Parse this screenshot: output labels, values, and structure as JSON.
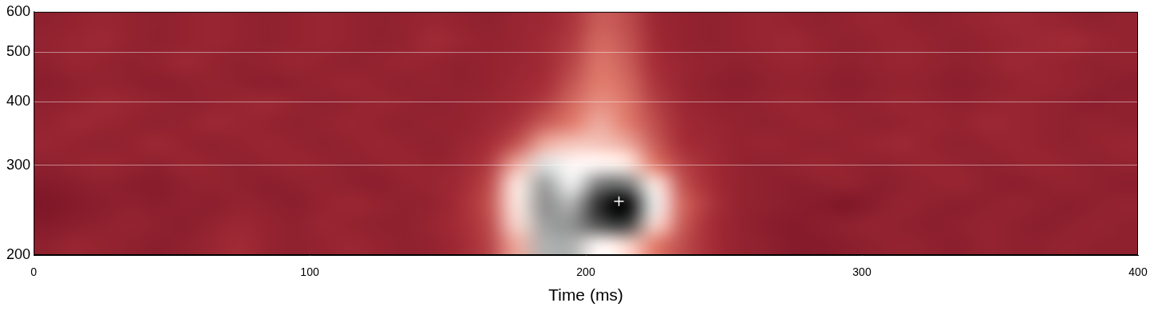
{
  "chart_data": {
    "type": "heatmap",
    "x_label": "Time (ms)",
    "xlim": [
      0,
      400
    ],
    "xticks": [
      0,
      100,
      200,
      300,
      400
    ],
    "ylim": [
      200,
      600
    ],
    "yticks": [
      200,
      300,
      400,
      500,
      600
    ],
    "log": "y",
    "grid": true,
    "x_edges": [
      0,
      10,
      20,
      30,
      40,
      50,
      60,
      70,
      80,
      90,
      100,
      110,
      120,
      130,
      140,
      150,
      160,
      170,
      180,
      190,
      200,
      210,
      220,
      230,
      240,
      250,
      260,
      270,
      280,
      290,
      300,
      310,
      320,
      330,
      340,
      350,
      360,
      370,
      380,
      390,
      400
    ],
    "y_edges": [
      200,
      219.2,
      240.2,
      263.2,
      288.4,
      316.1,
      346.4,
      379.6,
      416.0,
      455.9,
      499.6,
      547.5,
      600
    ],
    "cells": [
      [
        0.2,
        0.24,
        0.22,
        0.2,
        0.18,
        0.2,
        0.24,
        0.28,
        0.22,
        0.2,
        0.22,
        0.25,
        0.22,
        0.2,
        0.22,
        0.28,
        0.36,
        0.55,
        0.78,
        0.78,
        0.66,
        0.6,
        0.5,
        0.38,
        0.3,
        0.22,
        0.2,
        0.15,
        0.15,
        0.18,
        0.2,
        0.22,
        0.2,
        0.18,
        0.22,
        0.2,
        0.2,
        0.22,
        0.2,
        0.2
      ],
      [
        0.15,
        0.18,
        0.2,
        0.22,
        0.2,
        0.18,
        0.22,
        0.25,
        0.22,
        0.2,
        0.24,
        0.22,
        0.2,
        0.2,
        0.24,
        0.3,
        0.38,
        0.6,
        0.8,
        0.82,
        0.9,
        0.92,
        0.6,
        0.42,
        0.3,
        0.22,
        0.18,
        0.15,
        0.18,
        0.2,
        0.22,
        0.2,
        0.18,
        0.2,
        0.22,
        0.2,
        0.18,
        0.2,
        0.22,
        0.2
      ],
      [
        0.12,
        0.15,
        0.18,
        0.2,
        0.18,
        0.2,
        0.18,
        0.22,
        0.2,
        0.18,
        0.22,
        0.25,
        0.22,
        0.2,
        0.22,
        0.3,
        0.4,
        0.62,
        0.82,
        0.78,
        0.95,
        1.0,
        0.7,
        0.45,
        0.32,
        0.22,
        0.2,
        0.18,
        0.15,
        0.12,
        0.18,
        0.22,
        0.2,
        0.18,
        0.2,
        0.22,
        0.2,
        0.18,
        0.2,
        0.22
      ],
      [
        0.15,
        0.18,
        0.2,
        0.18,
        0.16,
        0.2,
        0.22,
        0.2,
        0.18,
        0.2,
        0.22,
        0.2,
        0.18,
        0.22,
        0.24,
        0.28,
        0.38,
        0.62,
        0.8,
        0.7,
        0.85,
        0.85,
        0.62,
        0.4,
        0.3,
        0.22,
        0.2,
        0.18,
        0.2,
        0.22,
        0.18,
        0.2,
        0.22,
        0.24,
        0.2,
        0.18,
        0.2,
        0.22,
        0.2,
        0.18
      ],
      [
        0.2,
        0.22,
        0.24,
        0.22,
        0.2,
        0.24,
        0.22,
        0.2,
        0.22,
        0.24,
        0.22,
        0.2,
        0.22,
        0.24,
        0.22,
        0.26,
        0.34,
        0.55,
        0.72,
        0.66,
        0.66,
        0.62,
        0.5,
        0.35,
        0.28,
        0.22,
        0.2,
        0.22,
        0.24,
        0.22,
        0.2,
        0.22,
        0.24,
        0.22,
        0.2,
        0.22,
        0.24,
        0.22,
        0.2,
        0.22
      ],
      [
        0.24,
        0.22,
        0.2,
        0.22,
        0.26,
        0.22,
        0.2,
        0.22,
        0.24,
        0.22,
        0.2,
        0.22,
        0.24,
        0.22,
        0.2,
        0.24,
        0.3,
        0.4,
        0.55,
        0.58,
        0.58,
        0.55,
        0.42,
        0.3,
        0.26,
        0.22,
        0.24,
        0.22,
        0.2,
        0.22,
        0.24,
        0.26,
        0.22,
        0.2,
        0.22,
        0.24,
        0.22,
        0.2,
        0.22,
        0.24
      ],
      [
        0.22,
        0.26,
        0.24,
        0.22,
        0.2,
        0.22,
        0.26,
        0.24,
        0.22,
        0.2,
        0.22,
        0.24,
        0.22,
        0.2,
        0.22,
        0.22,
        0.26,
        0.32,
        0.42,
        0.5,
        0.55,
        0.5,
        0.38,
        0.28,
        0.24,
        0.22,
        0.2,
        0.22,
        0.24,
        0.22,
        0.2,
        0.22,
        0.24,
        0.22,
        0.26,
        0.24,
        0.22,
        0.2,
        0.22,
        0.2
      ],
      [
        0.2,
        0.22,
        0.26,
        0.24,
        0.22,
        0.2,
        0.22,
        0.24,
        0.26,
        0.22,
        0.2,
        0.22,
        0.24,
        0.22,
        0.2,
        0.22,
        0.24,
        0.28,
        0.34,
        0.45,
        0.52,
        0.48,
        0.35,
        0.26,
        0.22,
        0.2,
        0.22,
        0.24,
        0.22,
        0.2,
        0.22,
        0.24,
        0.22,
        0.2,
        0.22,
        0.24,
        0.22,
        0.2,
        0.18,
        0.2
      ],
      [
        0.18,
        0.2,
        0.22,
        0.2,
        0.18,
        0.2,
        0.22,
        0.2,
        0.18,
        0.2,
        0.22,
        0.24,
        0.22,
        0.2,
        0.22,
        0.2,
        0.22,
        0.26,
        0.3,
        0.4,
        0.5,
        0.45,
        0.32,
        0.24,
        0.2,
        0.18,
        0.2,
        0.22,
        0.2,
        0.18,
        0.2,
        0.22,
        0.2,
        0.18,
        0.2,
        0.22,
        0.24,
        0.22,
        0.2,
        0.18
      ],
      [
        0.2,
        0.24,
        0.22,
        0.2,
        0.22,
        0.26,
        0.22,
        0.2,
        0.22,
        0.24,
        0.22,
        0.2,
        0.22,
        0.24,
        0.22,
        0.2,
        0.22,
        0.24,
        0.28,
        0.36,
        0.48,
        0.42,
        0.3,
        0.24,
        0.22,
        0.2,
        0.22,
        0.24,
        0.22,
        0.2,
        0.22,
        0.24,
        0.22,
        0.2,
        0.22,
        0.26,
        0.24,
        0.22,
        0.2,
        0.22
      ],
      [
        0.22,
        0.24,
        0.26,
        0.22,
        0.2,
        0.22,
        0.24,
        0.22,
        0.2,
        0.22,
        0.24,
        0.22,
        0.2,
        0.22,
        0.28,
        0.24,
        0.22,
        0.24,
        0.28,
        0.34,
        0.45,
        0.4,
        0.28,
        0.22,
        0.2,
        0.22,
        0.24,
        0.26,
        0.22,
        0.2,
        0.22,
        0.24,
        0.22,
        0.2,
        0.22,
        0.24,
        0.26,
        0.28,
        0.24,
        0.22
      ],
      [
        0.2,
        0.22,
        0.24,
        0.22,
        0.2,
        0.22,
        0.24,
        0.22,
        0.2,
        0.22,
        0.24,
        0.22,
        0.2,
        0.22,
        0.24,
        0.22,
        0.2,
        0.24,
        0.26,
        0.32,
        0.42,
        0.38,
        0.26,
        0.22,
        0.2,
        0.22,
        0.24,
        0.22,
        0.2,
        0.22,
        0.24,
        0.22,
        0.2,
        0.22,
        0.24,
        0.26,
        0.24,
        0.22,
        0.2,
        0.22
      ]
    ],
    "series": [
      {
        "type": "scatter",
        "marker": "cross",
        "color": "#ffffff",
        "x": [
          212
        ],
        "values": [
          255
        ]
      }
    ]
  }
}
